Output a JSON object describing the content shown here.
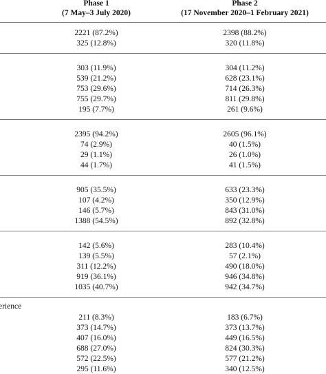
{
  "header": {
    "columns": [
      {
        "title": "Phase 1",
        "subtitle": "(7 May–3 July 2020)"
      },
      {
        "title": "Phase 2",
        "subtitle": "(17 November 2020–1 February 2021)"
      }
    ]
  },
  "groups": [
    {
      "rows": [
        [
          "2221 (87.2%)",
          "2398 (88.2%)"
        ],
        [
          "325 (12.8%)",
          "320 (11.8%)"
        ]
      ]
    },
    {
      "rows": [
        [
          "303 (11.9%)",
          "304 (11.2%)"
        ],
        [
          "539 (21.2%)",
          "628 (23.1%)"
        ],
        [
          "753 (29.6%)",
          "714 (26.3%)"
        ],
        [
          "755 (29.7%)",
          "811 (29.8%)"
        ],
        [
          "195 (7.7%)",
          "261 (9.6%)"
        ]
      ]
    },
    {
      "rows": [
        [
          "2395 (94.2%)",
          "2605 (96.1%)"
        ],
        [
          "74 (2.9%)",
          "40 (1.5%)"
        ],
        [
          "29 (1.1%)",
          "26 (1.0%)"
        ],
        [
          "44 (1.7%)",
          "41 (1.5%)"
        ]
      ]
    },
    {
      "rows": [
        [
          "905 (35.5%)",
          "633 (23.3%)"
        ],
        [
          "107 (4.2%)",
          "350 (12.9%)"
        ],
        [
          "146 (5.7%)",
          "843 (31.0%)"
        ],
        [
          "1388 (54.5%)",
          "892 (32.8%)"
        ]
      ]
    },
    {
      "rows": [
        [
          "142 (5.6%)",
          "283 (10.4%)"
        ],
        [
          "139 (5.5%)",
          "57 (2.1%)"
        ],
        [
          "311 (12.2%)",
          "490 (18.0%)"
        ],
        [
          "919 (36.1%)",
          "946 (34.8%)"
        ],
        [
          "1035 (40.7%)",
          "942 (34.7%)"
        ]
      ]
    },
    {
      "label": "erience",
      "rows": [
        [
          "211 (8.3%)",
          "183 (6.7%)"
        ],
        [
          "373 (14.7%)",
          "373 (13.7%)"
        ],
        [
          "407 (16.0%)",
          "449 (16.5%)"
        ],
        [
          "688 (27.0%)",
          "824 (30.3%)"
        ],
        [
          "572 (22.5%)",
          "577 (21.2%)"
        ],
        [
          "295 (11.6%)",
          "340 (12.5%)"
        ]
      ]
    }
  ]
}
